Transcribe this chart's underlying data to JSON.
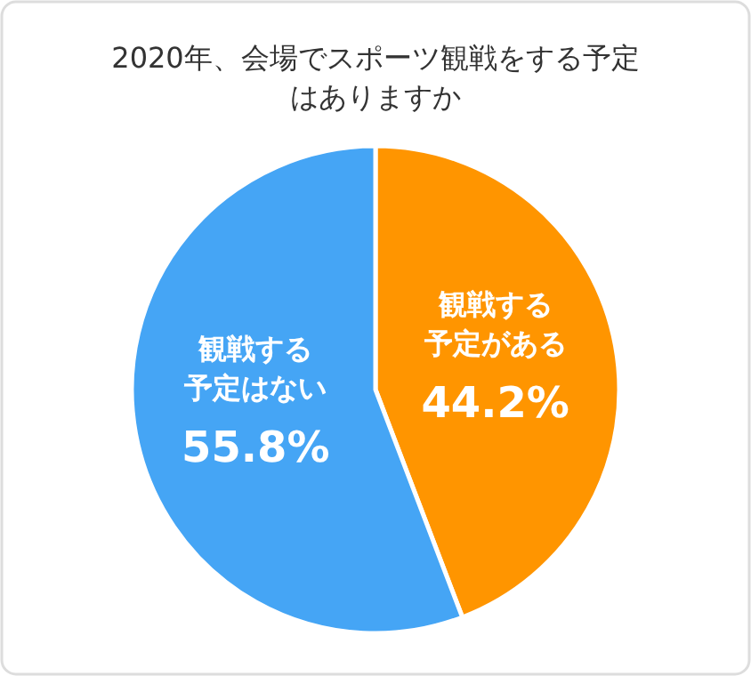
{
  "chart_data": {
    "type": "pie",
    "title": "2020年、会場でスポーツ観戦をする予定はありますか",
    "categories": [
      "観戦する予定がある",
      "観戦する予定はない"
    ],
    "values": [
      44.2,
      55.8
    ],
    "colors": [
      "#ff9500",
      "#45a5f5"
    ],
    "value_labels": [
      "44.2%",
      "55.8%"
    ]
  }
}
